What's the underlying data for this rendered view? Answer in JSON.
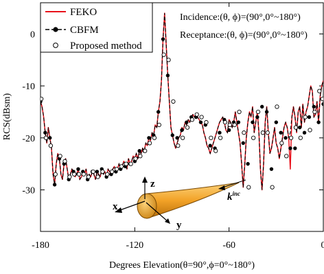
{
  "chart_data": {
    "type": "line",
    "xlabel": "Degrees Elevation(θ=90°,ϕ=0°~180°)",
    "ylabel": "RCS(dBsm)",
    "xlim": [
      -180,
      0
    ],
    "ylim": [
      -38,
      6
    ],
    "xticks": [
      -180,
      -120,
      -60,
      0
    ],
    "xtick_labels": [
      "-180",
      "-120",
      "-60",
      "0"
    ],
    "yticks": [
      0,
      -10,
      -20,
      -30
    ],
    "ytick_labels": [
      "0",
      "-10",
      "-20",
      "-30"
    ],
    "grid": false,
    "legend_position": "top-left",
    "annotations": [
      "Incidence:(θ, ϕ)=(90°,0°~180°)",
      "Receptance:(θ, ϕ)=(90°,0°~180°)"
    ],
    "inset_labels": {
      "x": "x",
      "y": "y",
      "z": "z",
      "k": "k",
      "k_sup": "inc"
    },
    "colors": {
      "feko": "#e8101a",
      "cbfm": "#000000",
      "cone": "#f2a227",
      "cone_edge": "#7a4a05"
    },
    "series": [
      {
        "name": "FEKO",
        "style": "line",
        "x": [
          -180,
          -179,
          -178,
          -177,
          -176,
          -175,
          -174,
          -173,
          -172,
          -171,
          -170,
          -169,
          -168,
          -167,
          -166,
          -165,
          -164,
          -163,
          -162,
          -161,
          -160,
          -159,
          -158,
          -157,
          -156,
          -155,
          -154,
          -153,
          -152,
          -151,
          -150,
          -149,
          -148,
          -147,
          -146,
          -145,
          -144,
          -143,
          -142,
          -141,
          -140,
          -139,
          -138,
          -137,
          -136,
          -135,
          -134,
          -133,
          -132,
          -131,
          -130,
          -129,
          -128,
          -127,
          -126,
          -125,
          -124,
          -123,
          -122,
          -121,
          -120,
          -119,
          -118,
          -117,
          -116,
          -115,
          -114,
          -113,
          -112,
          -111,
          -110,
          -109,
          -108,
          -107,
          -106,
          -105,
          -104,
          -103,
          -102,
          -101,
          -100,
          -99,
          -98,
          -97,
          -96,
          -95,
          -94,
          -93,
          -92,
          -91,
          -90,
          -89,
          -88,
          -87,
          -86,
          -85,
          -84,
          -83,
          -82,
          -81,
          -80,
          -79,
          -78,
          -77,
          -76,
          -75,
          -74,
          -73,
          -72,
          -71,
          -70,
          -69,
          -68,
          -67,
          -66,
          -65,
          -64,
          -63,
          -62,
          -61,
          -60,
          -59,
          -58,
          -57,
          -56,
          -55,
          -54,
          -53,
          -52,
          -51,
          -50,
          -49,
          -48,
          -47,
          -46,
          -45,
          -44,
          -43,
          -42,
          -41,
          -40,
          -39,
          -38,
          -37,
          -36,
          -35,
          -34,
          -33,
          -32,
          -31,
          -30,
          -29,
          -28,
          -27,
          -26,
          -25,
          -24,
          -23,
          -22,
          -21,
          -20,
          -19,
          -18,
          -17,
          -16,
          -15,
          -14,
          -13,
          -12,
          -11,
          -10,
          -9,
          -8,
          -7,
          -6,
          -5,
          -4,
          -3,
          -2,
          -1,
          0
        ],
        "y": [
          -13,
          -14,
          -16,
          -19,
          -21,
          -18,
          -20,
          -22,
          -27,
          -29,
          -25,
          -23,
          -24,
          -27,
          -28,
          -25,
          -24,
          -26,
          -28,
          -27,
          -26,
          -26.5,
          -27.5,
          -27,
          -26,
          -28,
          -27.5,
          -26.5,
          -27,
          -26,
          -28,
          -27,
          -27.5,
          -26.5,
          -27,
          -28,
          -26.5,
          -27,
          -27.5,
          -26,
          -27,
          -26.5,
          -27.5,
          -26,
          -26.5,
          -27,
          -26,
          -25.5,
          -26.5,
          -26,
          -25,
          -26,
          -25.5,
          -24.5,
          -25,
          -26,
          -24,
          -25,
          -24.5,
          -23.5,
          -24,
          -23,
          -24,
          -22.5,
          -23,
          -22,
          -22.5,
          -21,
          -21.5,
          -20,
          -20.5,
          -19,
          -19.5,
          -17.5,
          -18,
          -15,
          -13,
          -9,
          -1,
          4,
          -2,
          -8,
          -13,
          -18,
          -19.5,
          -21,
          -22,
          -21,
          -20,
          -19.5,
          -18,
          -18.5,
          -17,
          -17.5,
          -16.5,
          -17,
          -16,
          -15.5,
          -16,
          -15.5,
          -16,
          -16.5,
          -17,
          -17.5,
          -19,
          -20,
          -21.5,
          -22,
          -23,
          -22,
          -21,
          -20,
          -19,
          -18,
          -17,
          -16.5,
          -16,
          -17,
          -18.5,
          -19,
          -16.5,
          -17,
          -18,
          -17,
          -15,
          -17,
          -19,
          -21,
          -25,
          -29.5,
          -25,
          -20,
          -17,
          -15,
          -16,
          -14,
          -19,
          -17,
          -15,
          -19,
          -26,
          -30,
          -25,
          -17,
          -14,
          -19,
          -23,
          -22,
          -20,
          -18,
          -21,
          -22,
          -24,
          -22,
          -20,
          -18,
          -17,
          -18,
          -20,
          -26,
          -16,
          -14,
          -16,
          -19,
          -15,
          -14,
          -18,
          -13.5,
          -17,
          -15,
          -14,
          -12,
          -10,
          -11,
          -16,
          -15.5,
          -13,
          -17,
          -12,
          -10,
          -9
        ]
      },
      {
        "name": "CBFM",
        "style": "dashed-line-filled-dots",
        "x": [
          -180,
          -179,
          -178,
          -177,
          -176,
          -175,
          -174,
          -173,
          -172,
          -171,
          -170,
          -169,
          -168,
          -167,
          -166,
          -165,
          -164,
          -163,
          -162,
          -161,
          -160,
          -159,
          -158,
          -157,
          -156,
          -155,
          -154,
          -153,
          -152,
          -151,
          -150,
          -149,
          -148,
          -147,
          -146,
          -145,
          -144,
          -143,
          -142,
          -141,
          -140,
          -139,
          -138,
          -137,
          -136,
          -135,
          -134,
          -133,
          -132,
          -131,
          -130,
          -129,
          -128,
          -127,
          -126,
          -125,
          -124,
          -123,
          -122,
          -121,
          -120,
          -119,
          -118,
          -117,
          -116,
          -115,
          -114,
          -113,
          -112,
          -111,
          -110,
          -109,
          -108,
          -107,
          -106,
          -105,
          -104,
          -103,
          -102,
          -101,
          -100,
          -99,
          -98,
          -97,
          -96,
          -95,
          -94,
          -93,
          -92,
          -91,
          -90,
          -89,
          -88,
          -87,
          -86,
          -85,
          -84,
          -83,
          -82,
          -81,
          -80,
          -79,
          -78,
          -77,
          -76,
          -75,
          -74,
          -73,
          -72,
          -71,
          -70,
          -69,
          -68,
          -67,
          -66,
          -65,
          -64,
          -63,
          -62,
          -61,
          -60,
          -59,
          -58,
          -57,
          -56,
          -55,
          -54,
          -53,
          -52,
          -51,
          -50,
          -49,
          -48,
          -47,
          -46,
          -45,
          -44,
          -43,
          -42,
          -41,
          -40,
          -39,
          -38,
          -37,
          -36,
          -35,
          -34,
          -33,
          -32,
          -31,
          -30,
          -29,
          -28,
          -27,
          -26,
          -25,
          -24,
          -23,
          -22,
          -21,
          -20,
          -19,
          -18,
          -17,
          -16,
          -15,
          -14,
          -13,
          -12,
          -11,
          -10,
          -9,
          -8,
          -7,
          -6,
          -5,
          -4,
          -3,
          -2,
          -1,
          0
        ],
        "y": [
          -13,
          -14,
          -16,
          -19,
          -21,
          -18,
          -20,
          -22,
          -27,
          -29,
          -25,
          -23,
          -24,
          -27,
          -28,
          -25,
          -24,
          -26,
          -28,
          -27,
          -26,
          -26.5,
          -27.5,
          -27,
          -26,
          -28,
          -27.5,
          -26.5,
          -27,
          -26,
          -28,
          -27,
          -27.5,
          -26.5,
          -27,
          -28,
          -26.5,
          -27,
          -27.5,
          -26,
          -27,
          -26.5,
          -27.5,
          -26,
          -26.5,
          -27,
          -26,
          -25.5,
          -26.5,
          -26,
          -25,
          -26,
          -25.5,
          -24.5,
          -25,
          -26,
          -24,
          -25,
          -24.5,
          -23.5,
          -24,
          -23,
          -24,
          -22.5,
          -23,
          -22,
          -22.5,
          -21,
          -21.5,
          -20,
          -20.5,
          -19,
          -19.5,
          -17.5,
          -18,
          -15,
          -13,
          -9,
          -1,
          4,
          -2,
          -8,
          -13,
          -18,
          -19.5,
          -21,
          -22,
          -21,
          -20,
          -19.5,
          -18,
          -18.5,
          -17,
          -17.5,
          -16.5,
          -17,
          -16,
          -15.5,
          -16,
          -15.5,
          -16,
          -16.5,
          -17,
          -17.5,
          -19,
          -20,
          -21.5,
          -22,
          -23,
          -22,
          -21,
          -20,
          -19,
          -18,
          -17,
          -16.5,
          -16,
          -17,
          -18.5,
          -19,
          -16.5,
          -17,
          -18,
          -17,
          -15,
          -17,
          -19,
          -21,
          -25,
          -29.5,
          -25,
          -20,
          -17,
          -15,
          -16,
          -14,
          -19,
          -17,
          -15,
          -19,
          -26,
          -30,
          -25,
          -17,
          -14,
          -19,
          -23,
          -22,
          -20,
          -18,
          -21,
          -22,
          -24,
          -22,
          -20,
          -18,
          -17,
          -18,
          -20,
          -19,
          -16,
          -14,
          -16,
          -19,
          -15,
          -14,
          -18,
          -13.5,
          -17,
          -15,
          -14,
          -12,
          -10,
          -11,
          -16,
          -15.5,
          -13,
          -17,
          -12,
          -10,
          -9
        ],
        "marker_x": [
          -180,
          -177,
          -174,
          -171,
          -168,
          -165,
          -162,
          -159,
          -156,
          -153,
          -150,
          -147,
          -144,
          -141,
          -138,
          -135,
          -132,
          -129,
          -126,
          -123,
          -120,
          -117,
          -114,
          -111,
          -108,
          -105,
          -102,
          -99,
          -96,
          -93,
          -90,
          -87,
          -84,
          -81,
          -78,
          -75,
          -72,
          -69,
          -66,
          -63,
          -60,
          -57,
          -54,
          -51,
          -48,
          -45,
          -42,
          -39,
          -36,
          -33,
          -30,
          -27,
          -24,
          -21,
          -18,
          -15,
          -12,
          -9,
          -6,
          -3,
          0
        ],
        "marker_y": [
          -13,
          -19,
          -20,
          -29,
          -24,
          -25,
          -28,
          -26.5,
          -26,
          -26.5,
          -28,
          -26.5,
          -26.5,
          -26,
          -27.5,
          -27,
          -26.5,
          -26,
          -25.5,
          -25,
          -24.5,
          -22.5,
          -22.5,
          -20,
          -19.5,
          -15,
          -1,
          -8,
          -19.5,
          -20,
          -18.5,
          -17,
          -16,
          -16,
          -17,
          -17.5,
          -21.5,
          -22,
          -19,
          -16.5,
          -18.5,
          -17,
          -17,
          -21,
          -25,
          -17,
          -16,
          -14,
          -15,
          -26,
          -17,
          -19,
          -20,
          -22,
          -22,
          -18,
          -19,
          -16,
          -14,
          -17,
          -13.5
        ]
      },
      {
        "name": "Proposed method",
        "style": "open-circles",
        "x": [
          -179.5,
          -176.5,
          -173.5,
          -170.5,
          -167.5,
          -164.5,
          -161.5,
          -158.5,
          -155.5,
          -152.5,
          -149.5,
          -146.5,
          -143.5,
          -140.5,
          -137.5,
          -134.5,
          -131.5,
          -128.5,
          -125.5,
          -122.5,
          -119.5,
          -116.5,
          -113.5,
          -110.5,
          -107.5,
          -104.5,
          -101.5,
          -98.5,
          -95.5,
          -92.5,
          -89.5,
          -86.5,
          -83.5,
          -80.5,
          -77.5,
          -74.5,
          -71.5,
          -68.5,
          -65.5,
          -62.5,
          -59.5,
          -56.5,
          -53.5,
          -50.5,
          -47.5,
          -44.5,
          -41.5,
          -38.5,
          -35.5,
          -32.5,
          -29.5,
          -26.5,
          -23.5,
          -20.5,
          -17.5,
          -14.5,
          -11.5,
          -8.5,
          -5.5,
          -2.5,
          -0.5
        ],
        "y": [
          -12.5,
          -20,
          -21.5,
          -27,
          -23.5,
          -24.5,
          -27.5,
          -27,
          -27,
          -27,
          -27.5,
          -26.5,
          -27.5,
          -26.5,
          -27,
          -26.5,
          -26,
          -25.5,
          -25,
          -25,
          -24,
          -23.5,
          -22.5,
          -21,
          -20,
          -17.5,
          -4,
          -5,
          -13,
          -21.5,
          -20,
          -18,
          -16.5,
          -15.5,
          -16,
          -17,
          -20,
          -22.5,
          -20,
          -17,
          -17.5,
          -17.5,
          -15,
          -19,
          -29.5,
          -20,
          -15,
          -19,
          -19,
          -29.5,
          -14,
          -21,
          -23.5,
          -20,
          -18,
          -20,
          -16,
          -18.5,
          -15,
          -11,
          -12.5
        ]
      }
    ]
  }
}
